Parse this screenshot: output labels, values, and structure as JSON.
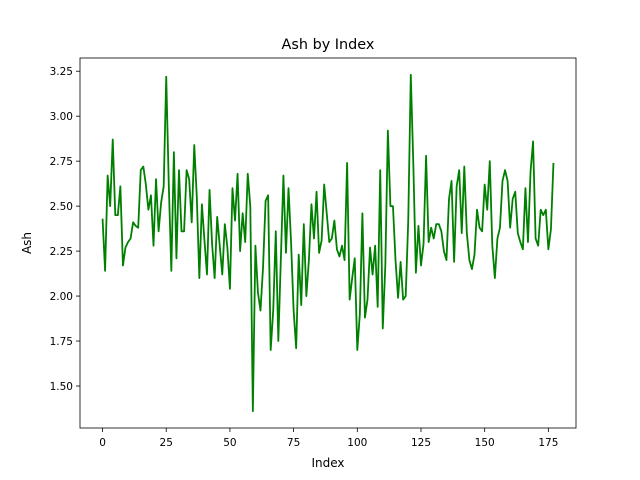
{
  "chart_data": {
    "type": "line",
    "title": "Ash by Index",
    "xlabel": "Index",
    "ylabel": "Ash",
    "xlim": [
      -8.85,
      185.85
    ],
    "ylim": [
      1.2665,
      3.3235
    ],
    "xticks": [
      0,
      25,
      50,
      75,
      100,
      125,
      150,
      175
    ],
    "yticks": [
      1.5,
      1.75,
      2.0,
      2.25,
      2.5,
      2.75,
      3.0,
      3.25
    ],
    "ytick_labels": [
      "1.50",
      "1.75",
      "2.00",
      "2.25",
      "2.50",
      "2.75",
      "3.00",
      "3.25"
    ],
    "grid": false,
    "series": [
      {
        "color": "#008000",
        "x": [
          0,
          1,
          2,
          3,
          4,
          5,
          6,
          7,
          8,
          9,
          10,
          11,
          12,
          13,
          14,
          15,
          16,
          17,
          18,
          19,
          20,
          21,
          22,
          23,
          24,
          25,
          26,
          27,
          28,
          29,
          30,
          31,
          32,
          33,
          34,
          35,
          36,
          37,
          38,
          39,
          40,
          41,
          42,
          43,
          44,
          45,
          46,
          47,
          48,
          49,
          50,
          51,
          52,
          53,
          54,
          55,
          56,
          57,
          58,
          59,
          60,
          61,
          62,
          63,
          64,
          65,
          66,
          67,
          68,
          69,
          70,
          71,
          72,
          73,
          74,
          75,
          76,
          77,
          78,
          79,
          80,
          81,
          82,
          83,
          84,
          85,
          86,
          87,
          88,
          89,
          90,
          91,
          92,
          93,
          94,
          95,
          96,
          97,
          98,
          99,
          100,
          101,
          102,
          103,
          104,
          105,
          106,
          107,
          108,
          109,
          110,
          111,
          112,
          113,
          114,
          115,
          116,
          117,
          118,
          119,
          120,
          121,
          122,
          123,
          124,
          125,
          126,
          127,
          128,
          129,
          130,
          131,
          132,
          133,
          134,
          135,
          136,
          137,
          138,
          139,
          140,
          141,
          142,
          143,
          144,
          145,
          146,
          147,
          148,
          149,
          150,
          151,
          152,
          153,
          154,
          155,
          156,
          157,
          158,
          159,
          160,
          161,
          162,
          163,
          164,
          165,
          166,
          167,
          168,
          169,
          170,
          171,
          172,
          173,
          174,
          175,
          176,
          177
        ],
        "values": [
          2.43,
          2.14,
          2.67,
          2.5,
          2.87,
          2.45,
          2.45,
          2.61,
          2.17,
          2.27,
          2.3,
          2.32,
          2.41,
          2.39,
          2.38,
          2.7,
          2.72,
          2.62,
          2.48,
          2.56,
          2.28,
          2.65,
          2.36,
          2.52,
          2.61,
          3.22,
          2.62,
          2.14,
          2.8,
          2.21,
          2.7,
          2.36,
          2.36,
          2.7,
          2.65,
          2.41,
          2.84,
          2.55,
          2.1,
          2.51,
          2.31,
          2.12,
          2.59,
          2.29,
          2.1,
          2.44,
          2.28,
          2.12,
          2.4,
          2.27,
          2.04,
          2.6,
          2.42,
          2.68,
          2.25,
          2.46,
          2.3,
          2.68,
          2.5,
          1.36,
          2.28,
          2.02,
          1.92,
          2.16,
          2.53,
          2.56,
          1.7,
          1.92,
          2.36,
          1.75,
          2.21,
          2.67,
          2.24,
          2.6,
          2.3,
          1.92,
          1.71,
          2.23,
          1.95,
          2.4,
          2.0,
          2.2,
          2.51,
          2.32,
          2.58,
          2.24,
          2.31,
          2.62,
          2.46,
          2.3,
          2.32,
          2.42,
          2.26,
          2.22,
          2.28,
          2.2,
          2.74,
          1.98,
          2.1,
          2.21,
          1.7,
          1.9,
          2.46,
          1.88,
          1.98,
          2.27,
          2.12,
          2.28,
          1.94,
          2.7,
          1.82,
          2.17,
          2.92,
          2.5,
          2.5,
          2.2,
          1.99,
          2.19,
          1.98,
          2.0,
          2.42,
          3.23,
          2.73,
          2.13,
          2.39,
          2.17,
          2.29,
          2.78,
          2.3,
          2.38,
          2.32,
          2.4,
          2.4,
          2.36,
          2.25,
          2.2,
          2.54,
          2.64,
          2.19,
          2.61,
          2.7,
          2.35,
          2.72,
          2.35,
          2.2,
          2.15,
          2.23,
          2.48,
          2.38,
          2.36,
          2.62,
          2.48,
          2.75,
          2.28,
          2.1,
          2.32,
          2.38,
          2.64,
          2.7,
          2.64,
          2.38,
          2.54,
          2.58,
          2.35,
          2.3,
          2.26,
          2.6,
          2.3,
          2.69,
          2.86,
          2.32,
          2.28,
          2.48,
          2.45,
          2.48,
          2.26,
          2.37,
          2.74
        ]
      }
    ]
  }
}
